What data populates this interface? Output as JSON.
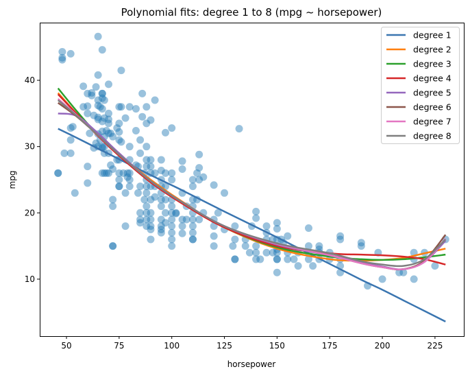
{
  "chart_data": {
    "type": "scatter",
    "title": "Polynomial fits: degree 1 to 8 (mpg ~ horsepower)",
    "xlabel": "horsepower",
    "ylabel": "mpg",
    "xlim": [
      37.3,
      238.7
    ],
    "ylim": [
      1.4,
      48.7
    ],
    "xticks": [
      50,
      75,
      100,
      125,
      150,
      175,
      200,
      225
    ],
    "yticks": [
      10,
      20,
      30,
      40
    ],
    "grid": false,
    "legend_position": "top-right",
    "scatter": {
      "color": "#1f77b4",
      "points": [
        [
          46,
          26
        ],
        [
          46,
          26
        ],
        [
          48,
          43.4
        ],
        [
          48,
          44.3
        ],
        [
          48,
          43.1
        ],
        [
          49,
          29
        ],
        [
          52,
          29
        ],
        [
          52,
          31
        ],
        [
          52,
          32.8
        ],
        [
          52,
          44
        ],
        [
          53,
          33
        ],
        [
          54,
          23
        ],
        [
          58,
          39.1
        ],
        [
          58,
          36
        ],
        [
          60,
          38
        ],
        [
          60,
          36.1
        ],
        [
          60,
          35
        ],
        [
          60,
          27
        ],
        [
          60,
          24.5
        ],
        [
          61,
          32
        ],
        [
          62,
          37.7
        ],
        [
          62,
          38.1
        ],
        [
          63,
          29.8
        ],
        [
          63,
          34.7
        ],
        [
          64,
          39
        ],
        [
          64,
          30.5
        ],
        [
          65,
          46.6
        ],
        [
          65,
          40.8
        ],
        [
          65,
          37
        ],
        [
          65,
          36.2
        ],
        [
          65,
          34.1
        ],
        [
          65,
          34.4
        ],
        [
          65,
          31.9
        ],
        [
          65,
          30
        ],
        [
          66,
          36
        ],
        [
          66,
          31
        ],
        [
          67,
          44.6
        ],
        [
          67,
          38
        ],
        [
          67,
          38
        ],
        [
          67,
          37.3
        ],
        [
          67,
          35.7
        ],
        [
          67,
          33.8
        ],
        [
          67,
          32.3
        ],
        [
          67,
          30
        ],
        [
          67,
          29.8
        ],
        [
          67,
          26
        ],
        [
          68,
          37
        ],
        [
          68,
          34.3
        ],
        [
          68,
          31.5
        ],
        [
          68,
          30
        ],
        [
          68,
          29
        ],
        [
          68,
          26
        ],
        [
          69,
          32.4
        ],
        [
          69,
          26
        ],
        [
          70,
          39.4
        ],
        [
          70,
          35
        ],
        [
          70,
          34.1
        ],
        [
          70,
          33.5
        ],
        [
          70,
          32
        ],
        [
          70,
          29
        ],
        [
          70,
          26
        ],
        [
          71,
          32
        ],
        [
          71,
          27.2
        ],
        [
          72,
          31.5
        ],
        [
          72,
          22
        ],
        [
          72,
          21
        ],
        [
          72,
          15
        ],
        [
          72,
          15
        ],
        [
          72,
          26.6
        ],
        [
          74,
          28
        ],
        [
          74,
          32.8
        ],
        [
          75,
          36
        ],
        [
          75,
          33.5
        ],
        [
          75,
          32.2
        ],
        [
          75,
          31
        ],
        [
          75,
          28
        ],
        [
          75,
          26
        ],
        [
          75,
          25
        ],
        [
          75,
          24
        ],
        [
          75,
          24
        ],
        [
          76,
          41.5
        ],
        [
          76,
          36
        ],
        [
          76,
          30.7
        ],
        [
          77,
          26
        ],
        [
          78,
          34.3
        ],
        [
          78,
          23
        ],
        [
          78,
          18
        ],
        [
          79,
          26
        ],
        [
          79,
          25.4
        ],
        [
          80,
          36
        ],
        [
          80,
          30
        ],
        [
          80,
          28
        ],
        [
          80,
          26
        ],
        [
          80,
          25
        ],
        [
          80,
          24
        ],
        [
          83,
          35.7
        ],
        [
          83,
          32.4
        ],
        [
          83,
          27.2
        ],
        [
          84,
          27
        ],
        [
          84,
          23
        ],
        [
          85,
          31
        ],
        [
          85,
          29
        ],
        [
          85,
          24
        ],
        [
          85,
          20
        ],
        [
          85,
          19
        ],
        [
          85,
          18.5
        ],
        [
          86,
          38
        ],
        [
          86,
          34.5
        ],
        [
          87,
          26
        ],
        [
          87,
          22
        ],
        [
          88,
          36
        ],
        [
          88,
          33.5
        ],
        [
          88,
          30
        ],
        [
          88,
          28
        ],
        [
          88,
          27
        ],
        [
          88,
          25
        ],
        [
          88,
          24
        ],
        [
          88,
          23
        ],
        [
          88,
          21
        ],
        [
          88,
          20
        ],
        [
          88,
          19
        ],
        [
          88,
          18
        ],
        [
          90,
          34
        ],
        [
          90,
          28
        ],
        [
          90,
          27
        ],
        [
          90,
          26
        ],
        [
          90,
          24
        ],
        [
          90,
          22
        ],
        [
          90,
          20
        ],
        [
          90,
          19
        ],
        [
          90,
          18
        ],
        [
          90,
          17.5
        ],
        [
          90,
          16
        ],
        [
          92,
          37
        ],
        [
          92,
          26
        ],
        [
          92,
          24
        ],
        [
          92,
          22.4
        ],
        [
          95,
          28
        ],
        [
          95,
          26.4
        ],
        [
          95,
          25
        ],
        [
          95,
          24
        ],
        [
          95,
          23
        ],
        [
          95,
          22
        ],
        [
          95,
          21
        ],
        [
          95,
          19
        ],
        [
          95,
          18
        ],
        [
          95,
          17.5
        ],
        [
          95,
          17
        ],
        [
          97,
          32.1
        ],
        [
          97,
          26
        ],
        [
          97,
          24
        ],
        [
          97,
          22
        ],
        [
          97,
          20
        ],
        [
          97,
          18.5
        ],
        [
          100,
          32.8
        ],
        [
          100,
          26
        ],
        [
          100,
          25
        ],
        [
          100,
          22
        ],
        [
          100,
          21
        ],
        [
          100,
          20
        ],
        [
          100,
          19
        ],
        [
          100,
          18
        ],
        [
          100,
          17
        ],
        [
          100,
          16
        ],
        [
          100,
          15
        ],
        [
          102,
          20
        ],
        [
          102,
          19.9
        ],
        [
          105,
          26.6
        ],
        [
          105,
          27.8
        ],
        [
          105,
          23
        ],
        [
          105,
          19
        ],
        [
          105,
          18
        ],
        [
          105,
          16.9
        ],
        [
          107,
          19
        ],
        [
          107,
          21
        ],
        [
          110,
          25
        ],
        [
          110,
          24
        ],
        [
          110,
          22
        ],
        [
          110,
          21
        ],
        [
          110,
          20
        ],
        [
          110,
          19
        ],
        [
          110,
          18
        ],
        [
          110,
          17
        ],
        [
          110,
          16
        ],
        [
          110,
          16
        ],
        [
          112,
          26
        ],
        [
          112,
          22
        ],
        [
          113,
          28.8
        ],
        [
          113,
          26.8
        ],
        [
          113,
          25
        ],
        [
          113,
          19
        ],
        [
          115,
          25.4
        ],
        [
          115,
          20
        ],
        [
          120,
          24.2
        ],
        [
          120,
          19
        ],
        [
          120,
          15
        ],
        [
          120,
          16.5
        ],
        [
          120,
          18
        ],
        [
          122,
          20
        ],
        [
          125,
          23
        ],
        [
          125,
          17.5
        ],
        [
          129,
          15
        ],
        [
          130,
          13
        ],
        [
          130,
          13
        ],
        [
          130,
          18
        ],
        [
          130,
          16
        ],
        [
          132,
          32.7
        ],
        [
          135,
          15
        ],
        [
          135,
          16
        ],
        [
          137,
          14
        ],
        [
          138,
          18
        ],
        [
          140,
          20.2
        ],
        [
          140,
          19.2
        ],
        [
          140,
          15
        ],
        [
          140,
          14
        ],
        [
          140,
          13
        ],
        [
          142,
          13
        ],
        [
          145,
          18
        ],
        [
          145,
          17
        ],
        [
          145,
          16
        ],
        [
          145,
          14
        ],
        [
          148,
          14
        ],
        [
          148,
          16
        ],
        [
          150,
          18.5
        ],
        [
          150,
          17.6
        ],
        [
          150,
          16
        ],
        [
          150,
          15
        ],
        [
          150,
          14
        ],
        [
          150,
          13
        ],
        [
          150,
          13
        ],
        [
          150,
          11
        ],
        [
          150,
          14.5
        ],
        [
          152,
          16
        ],
        [
          153,
          15.5
        ],
        [
          155,
          16.5
        ],
        [
          155,
          14
        ],
        [
          155,
          13
        ],
        [
          158,
          13
        ],
        [
          160,
          12
        ],
        [
          160,
          14
        ],
        [
          165,
          17.7
        ],
        [
          165,
          15
        ],
        [
          165,
          14
        ],
        [
          165,
          13
        ],
        [
          167,
          12
        ],
        [
          170,
          15
        ],
        [
          170,
          14.5
        ],
        [
          170,
          13
        ],
        [
          170,
          14
        ],
        [
          175,
          13
        ],
        [
          175,
          14
        ],
        [
          180,
          16.5
        ],
        [
          180,
          16
        ],
        [
          180,
          13
        ],
        [
          180,
          12
        ],
        [
          180,
          11
        ],
        [
          190,
          15.5
        ],
        [
          190,
          15
        ],
        [
          193,
          9
        ],
        [
          198,
          14
        ],
        [
          200,
          10
        ],
        [
          208,
          11
        ],
        [
          210,
          11
        ],
        [
          215,
          14
        ],
        [
          215,
          13
        ],
        [
          215,
          10
        ],
        [
          220,
          14
        ],
        [
          225,
          12
        ],
        [
          230,
          16
        ]
      ]
    },
    "fit_x": [
      46,
      55,
      65,
      75,
      90,
      105,
      125,
      150,
      175,
      190,
      200,
      210,
      220,
      230
    ],
    "series": [
      {
        "name": "degree 1",
        "color": "#3a75b0",
        "values": [
          32.7,
          31.3,
          29.7,
          28.1,
          25.7,
          23.4,
          20.2,
          16.3,
          12.3,
          9.9,
          8.4,
          6.8,
          5.2,
          3.6
        ]
      },
      {
        "name": "degree 2",
        "color": "#ff7f0e",
        "values": [
          38.1,
          34.9,
          31.6,
          28.8,
          25.0,
          21.7,
          17.8,
          14.6,
          13.0,
          12.8,
          12.9,
          13.2,
          13.9,
          14.6
        ]
      },
      {
        "name": "degree 3",
        "color": "#2ca02c",
        "values": [
          38.8,
          35.3,
          31.7,
          28.7,
          24.8,
          21.5,
          17.8,
          14.8,
          13.4,
          13.0,
          12.9,
          13.0,
          13.3,
          13.7
        ]
      },
      {
        "name": "degree 4",
        "color": "#d62728",
        "values": [
          37.9,
          34.9,
          31.6,
          28.6,
          24.6,
          21.4,
          17.8,
          15.0,
          13.9,
          13.7,
          13.6,
          13.4,
          13.0,
          12.2
        ]
      },
      {
        "name": "degree 5",
        "color": "#9467bd",
        "values": [
          35.0,
          34.6,
          32.0,
          29.0,
          24.8,
          21.6,
          18.0,
          15.2,
          13.6,
          12.5,
          11.9,
          11.5,
          12.6,
          15.8
        ]
      },
      {
        "name": "degree 6",
        "color": "#8c564b",
        "values": [
          36.6,
          34.5,
          31.7,
          28.8,
          24.8,
          21.6,
          18.0,
          15.3,
          13.6,
          12.4,
          11.8,
          11.5,
          12.8,
          16.7
        ]
      },
      {
        "name": "degree 7",
        "color": "#e377c2",
        "values": [
          37.2,
          34.7,
          31.7,
          28.8,
          24.8,
          21.6,
          18.0,
          15.3,
          13.6,
          12.4,
          11.8,
          11.5,
          12.6,
          16.1
        ]
      },
      {
        "name": "degree 8",
        "color": "#7f7f7f",
        "values": [
          37.0,
          34.6,
          31.7,
          28.8,
          24.8,
          21.6,
          18.0,
          15.4,
          13.9,
          12.7,
          12.2,
          12.0,
          13.0,
          16.0
        ]
      }
    ]
  }
}
